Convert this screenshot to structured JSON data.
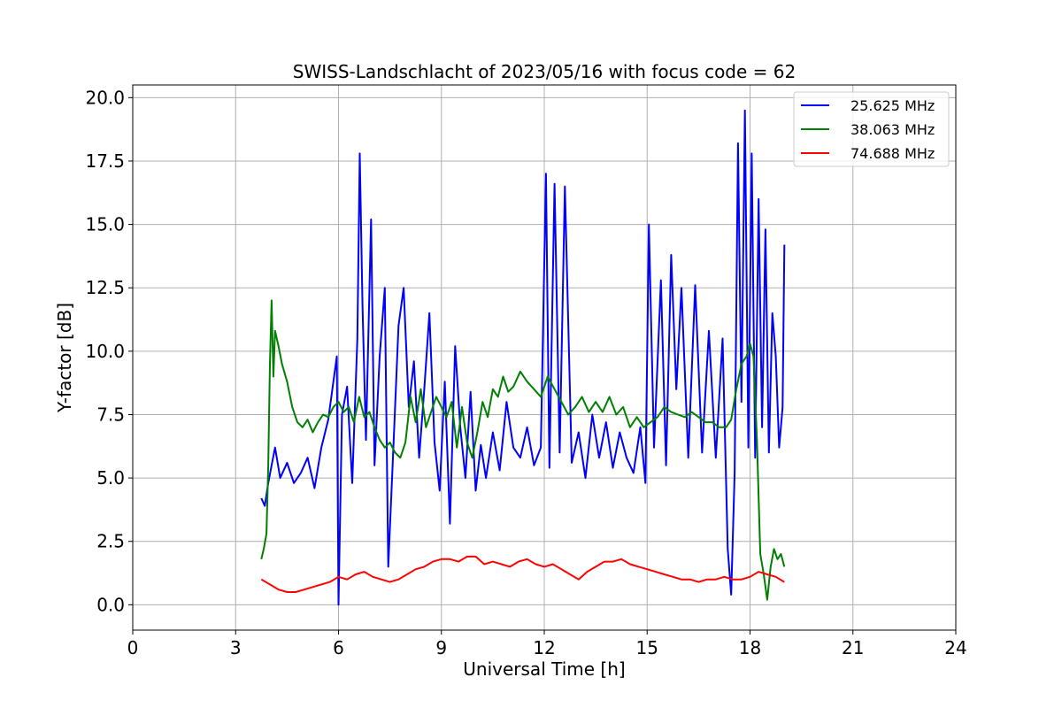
{
  "chart_data": {
    "type": "line",
    "title": "SWISS-Landschlacht of 2023/05/16 with focus code = 62",
    "xlabel": "Universal Time [h]",
    "ylabel": "Y-factor [dB]",
    "xlim": [
      0,
      24
    ],
    "ylim": [
      -1,
      20.5
    ],
    "xticks": [
      0,
      3,
      6,
      9,
      12,
      15,
      18,
      21,
      24
    ],
    "yticks": [
      0.0,
      2.5,
      5.0,
      7.5,
      10.0,
      12.5,
      15.0,
      17.5,
      20.0
    ],
    "xtick_labels": [
      "0",
      "3",
      "6",
      "9",
      "12",
      "15",
      "18",
      "21",
      "24"
    ],
    "ytick_labels": [
      "0.0",
      "2.5",
      "5.0",
      "7.5",
      "10.0",
      "12.5",
      "15.0",
      "17.5",
      "20.0"
    ],
    "grid": true,
    "legend_position": "top-right",
    "series": [
      {
        "name": "25.625 MHz",
        "color": "#0000ff",
        "x": [
          3.75,
          3.85,
          3.95,
          4.05,
          4.15,
          4.3,
          4.5,
          4.7,
          4.9,
          5.1,
          5.3,
          5.5,
          5.7,
          5.85,
          5.95,
          6.0,
          6.1,
          6.25,
          6.4,
          6.55,
          6.62,
          6.7,
          6.8,
          6.95,
          7.05,
          7.2,
          7.35,
          7.45,
          7.6,
          7.75,
          7.9,
          8.05,
          8.2,
          8.35,
          8.5,
          8.65,
          8.8,
          8.95,
          9.1,
          9.25,
          9.4,
          9.55,
          9.7,
          9.85,
          10.0,
          10.15,
          10.3,
          10.5,
          10.7,
          10.9,
          11.1,
          11.3,
          11.5,
          11.7,
          11.9,
          12.05,
          12.15,
          12.3,
          12.45,
          12.6,
          12.8,
          13.0,
          13.2,
          13.4,
          13.6,
          13.8,
          14.0,
          14.2,
          14.4,
          14.6,
          14.8,
          14.95,
          15.05,
          15.2,
          15.4,
          15.55,
          15.7,
          15.85,
          16.0,
          16.2,
          16.4,
          16.6,
          16.8,
          17.0,
          17.2,
          17.35,
          17.45,
          17.55,
          17.65,
          17.75,
          17.85,
          17.95,
          18.05,
          18.15,
          18.25,
          18.35,
          18.45,
          18.55,
          18.65,
          18.75,
          18.85,
          18.95,
          19.0
        ],
        "values": [
          4.2,
          3.9,
          4.8,
          5.5,
          6.2,
          5.0,
          5.6,
          4.8,
          5.2,
          5.8,
          4.6,
          6.2,
          7.3,
          8.8,
          9.8,
          0.0,
          7.5,
          8.6,
          4.8,
          10.5,
          17.8,
          11.8,
          6.5,
          15.2,
          5.5,
          9.8,
          12.5,
          1.5,
          6.2,
          11.0,
          12.5,
          7.8,
          9.6,
          5.8,
          8.5,
          11.5,
          6.4,
          4.5,
          8.8,
          3.2,
          10.2,
          7.0,
          5.0,
          8.4,
          4.5,
          6.3,
          5.0,
          6.8,
          5.3,
          8.0,
          6.2,
          5.8,
          7.0,
          5.5,
          6.2,
          17.0,
          5.4,
          16.6,
          6.0,
          16.5,
          5.6,
          6.8,
          5.0,
          7.5,
          5.8,
          7.2,
          5.4,
          6.8,
          5.8,
          5.2,
          7.0,
          4.8,
          15.0,
          6.2,
          12.8,
          5.5,
          13.8,
          8.5,
          12.5,
          5.8,
          12.6,
          6.0,
          10.8,
          5.8,
          10.5,
          2.2,
          0.4,
          5.2,
          18.2,
          8.0,
          19.5,
          6.2,
          17.8,
          5.8,
          16.0,
          7.0,
          14.8,
          6.0,
          11.5,
          9.8,
          6.2,
          7.8,
          14.2
        ]
      },
      {
        "name": "38.063 MHz",
        "color": "#008000",
        "x": [
          3.75,
          3.82,
          3.9,
          3.95,
          4.0,
          4.05,
          4.1,
          4.15,
          4.25,
          4.35,
          4.5,
          4.65,
          4.8,
          4.95,
          5.1,
          5.25,
          5.4,
          5.55,
          5.7,
          5.85,
          6.0,
          6.15,
          6.3,
          6.45,
          6.6,
          6.75,
          6.9,
          7.05,
          7.2,
          7.35,
          7.5,
          7.65,
          7.8,
          7.95,
          8.1,
          8.25,
          8.4,
          8.55,
          8.7,
          8.85,
          9.0,
          9.15,
          9.3,
          9.45,
          9.6,
          9.75,
          9.9,
          10.05,
          10.2,
          10.35,
          10.5,
          10.65,
          10.8,
          10.95,
          11.1,
          11.3,
          11.5,
          11.7,
          11.9,
          12.1,
          12.3,
          12.5,
          12.7,
          12.9,
          13.1,
          13.3,
          13.5,
          13.7,
          13.9,
          14.1,
          14.3,
          14.5,
          14.7,
          14.9,
          15.1,
          15.3,
          15.5,
          15.7,
          15.9,
          16.1,
          16.3,
          16.5,
          16.7,
          16.9,
          17.1,
          17.3,
          17.45,
          17.6,
          17.75,
          17.9,
          18.0,
          18.1,
          18.2,
          18.3,
          18.4,
          18.5,
          18.6,
          18.7,
          18.8,
          18.9,
          19.0
        ],
        "values": [
          1.8,
          2.2,
          2.8,
          5.5,
          9.5,
          12.0,
          9.0,
          10.8,
          10.2,
          9.5,
          8.8,
          7.8,
          7.2,
          7.0,
          7.3,
          6.8,
          7.2,
          7.5,
          7.4,
          7.8,
          8.0,
          7.6,
          7.8,
          7.2,
          8.2,
          7.4,
          7.6,
          7.0,
          6.5,
          6.2,
          6.4,
          6.0,
          5.8,
          6.4,
          8.2,
          7.2,
          8.5,
          7.0,
          7.6,
          8.2,
          7.8,
          7.4,
          8.0,
          6.2,
          7.8,
          6.4,
          5.8,
          6.8,
          8.0,
          7.4,
          8.5,
          8.2,
          9.0,
          8.4,
          8.6,
          9.2,
          8.8,
          8.5,
          8.2,
          9.0,
          8.5,
          8.0,
          7.5,
          7.8,
          8.2,
          7.6,
          8.0,
          7.6,
          8.2,
          7.5,
          7.8,
          7.0,
          7.4,
          7.0,
          7.2,
          7.4,
          7.8,
          7.6,
          7.5,
          7.4,
          7.6,
          7.4,
          7.2,
          7.2,
          7.0,
          7.0,
          7.3,
          8.5,
          9.5,
          9.8,
          10.3,
          9.8,
          6.5,
          2.0,
          1.2,
          0.2,
          1.5,
          2.2,
          1.8,
          2.0,
          1.5
        ]
      },
      {
        "name": "74.688 MHz",
        "color": "#ff0000",
        "x": [
          3.75,
          4.0,
          4.25,
          4.5,
          4.75,
          5.0,
          5.25,
          5.5,
          5.75,
          6.0,
          6.25,
          6.5,
          6.75,
          7.0,
          7.25,
          7.5,
          7.75,
          8.0,
          8.25,
          8.5,
          8.75,
          9.0,
          9.25,
          9.5,
          9.75,
          10.0,
          10.25,
          10.5,
          10.75,
          11.0,
          11.25,
          11.5,
          11.75,
          12.0,
          12.25,
          12.5,
          12.75,
          13.0,
          13.25,
          13.5,
          13.75,
          14.0,
          14.25,
          14.5,
          14.75,
          15.0,
          15.25,
          15.5,
          15.75,
          16.0,
          16.25,
          16.5,
          16.75,
          17.0,
          17.25,
          17.5,
          17.75,
          18.0,
          18.25,
          18.5,
          18.75,
          19.0
        ],
        "values": [
          1.0,
          0.8,
          0.6,
          0.5,
          0.5,
          0.6,
          0.7,
          0.8,
          0.9,
          1.1,
          1.0,
          1.2,
          1.3,
          1.1,
          1.0,
          0.9,
          1.0,
          1.2,
          1.4,
          1.5,
          1.7,
          1.8,
          1.8,
          1.7,
          1.9,
          1.9,
          1.6,
          1.7,
          1.6,
          1.5,
          1.7,
          1.8,
          1.6,
          1.5,
          1.6,
          1.4,
          1.2,
          1.0,
          1.3,
          1.5,
          1.7,
          1.7,
          1.8,
          1.6,
          1.5,
          1.4,
          1.3,
          1.2,
          1.1,
          1.0,
          1.0,
          0.9,
          1.0,
          1.0,
          1.1,
          1.0,
          1.0,
          1.1,
          1.3,
          1.2,
          1.1,
          0.9
        ]
      }
    ]
  }
}
